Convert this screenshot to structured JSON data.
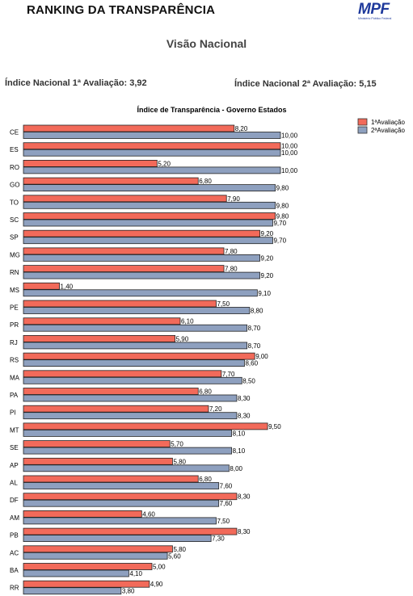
{
  "header": {
    "title": "RANKING DA TRANSPARÊNCIA",
    "logo_text": "MPF",
    "logo_subtext": "Ministério Público Federal"
  },
  "subtitle": "Visão Nacional",
  "national_index": {
    "first": "Índice Nacional 1ª Avaliação: 3,92",
    "second": "Índice Nacional 2ª Avaliação: 5,15"
  },
  "colors": {
    "first": "#f26a5a",
    "second": "#8ea0bf",
    "logo": "#1f3a9c"
  },
  "chart_data": {
    "type": "bar",
    "orientation": "horizontal",
    "title": "Índice de Transparência - Governo Estados",
    "xlim": [
      0,
      10
    ],
    "grid": false,
    "legend_position": "top-right",
    "categories": [
      "CE",
      "ES",
      "RO",
      "GO",
      "TO",
      "SC",
      "SP",
      "MG",
      "RN",
      "MS",
      "PE",
      "PR",
      "RJ",
      "RS",
      "MA",
      "PA",
      "PI",
      "MT",
      "SE",
      "AP",
      "AL",
      "DF",
      "AM",
      "PB",
      "AC",
      "BA",
      "RR"
    ],
    "series": [
      {
        "name": "1ªAvaliação",
        "values": [
          8.2,
          10.0,
          5.2,
          6.8,
          7.9,
          9.8,
          9.2,
          7.8,
          7.8,
          1.4,
          7.5,
          6.1,
          5.9,
          9.0,
          7.7,
          6.8,
          7.2,
          9.5,
          5.7,
          5.8,
          6.8,
          8.3,
          4.6,
          8.3,
          5.8,
          5.0,
          4.9
        ],
        "labels": [
          "8,20",
          "10,00",
          "5,20",
          "6,80",
          "7,90",
          "9,80",
          "9,20",
          "7,80",
          "7,80",
          "1,40",
          "7,50",
          "6,10",
          "5,90",
          "9,00",
          "7,70",
          "6,80",
          "7,20",
          "9,50",
          "5,70",
          "5,80",
          "6,80",
          "8,30",
          "4,60",
          "8,30",
          "5,80",
          "5,00",
          "4,90"
        ]
      },
      {
        "name": "2ªAvaliação",
        "values": [
          10.0,
          10.0,
          10.0,
          9.8,
          9.8,
          9.7,
          9.7,
          9.2,
          9.2,
          9.1,
          8.8,
          8.7,
          8.7,
          8.6,
          8.5,
          8.3,
          8.3,
          8.1,
          8.1,
          8.0,
          7.6,
          7.6,
          7.5,
          7.3,
          5.6,
          4.1,
          3.8
        ],
        "labels": [
          "10,00",
          "10,00",
          "10,00",
          "9,80",
          "9,80",
          "9,70",
          "9,70",
          "9,20",
          "9,20",
          "9,10",
          "8,80",
          "8,70",
          "8,70",
          "8,60",
          "8,50",
          "8,30",
          "8,30",
          "8,10",
          "8,10",
          "8,00",
          "7,60",
          "7,60",
          "7,50",
          "7,30",
          "5,60",
          "4,10",
          "3,80"
        ]
      }
    ]
  }
}
